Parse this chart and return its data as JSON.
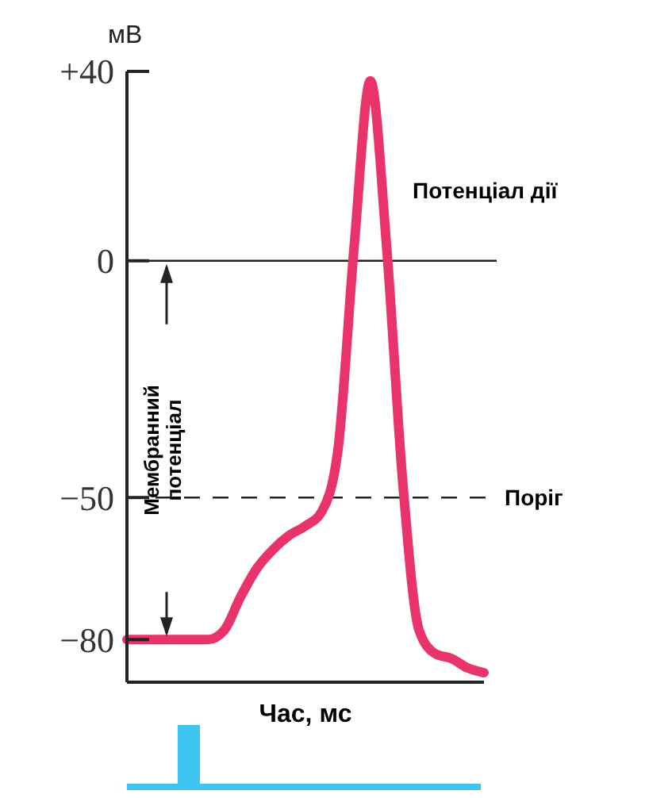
{
  "chart_data": {
    "type": "line",
    "xlabel": "Час, мс",
    "ylabel": "мВ",
    "categories": [
      null,
      null,
      null,
      null,
      null,
      null,
      null,
      null,
      null,
      null,
      null,
      null,
      null,
      null,
      null,
      null,
      null,
      null,
      null,
      null,
      null,
      null,
      null
    ],
    "series": [
      {
        "color": "#e8336b",
        "values": [
          -80,
          -80,
          -80,
          -80,
          -80,
          -80,
          -78,
          -71,
          -65,
          -61,
          -58,
          -56,
          -53,
          -40,
          3,
          38,
          3,
          -47,
          -78,
          -83,
          -84,
          -86,
          -87
        ]
      }
    ],
    "ylim": [
      -89,
      40
    ],
    "yticks": [
      {
        "value": 40,
        "label": "+40"
      },
      0,
      {
        "value": -50,
        "label": "−50"
      },
      {
        "value": -80,
        "label": "−80"
      }
    ],
    "ref_lines": [
      {
        "axis": "y",
        "value": 0,
        "line_style": "solid"
      },
      {
        "axis": "y",
        "value": -50,
        "label": "Поріг",
        "line_style": "dashed"
      }
    ],
    "annotations": [
      "Потенціал дії",
      "Мембранний потенціал"
    ],
    "grid": false,
    "marker": "none",
    "line_style": "solid"
  }
}
